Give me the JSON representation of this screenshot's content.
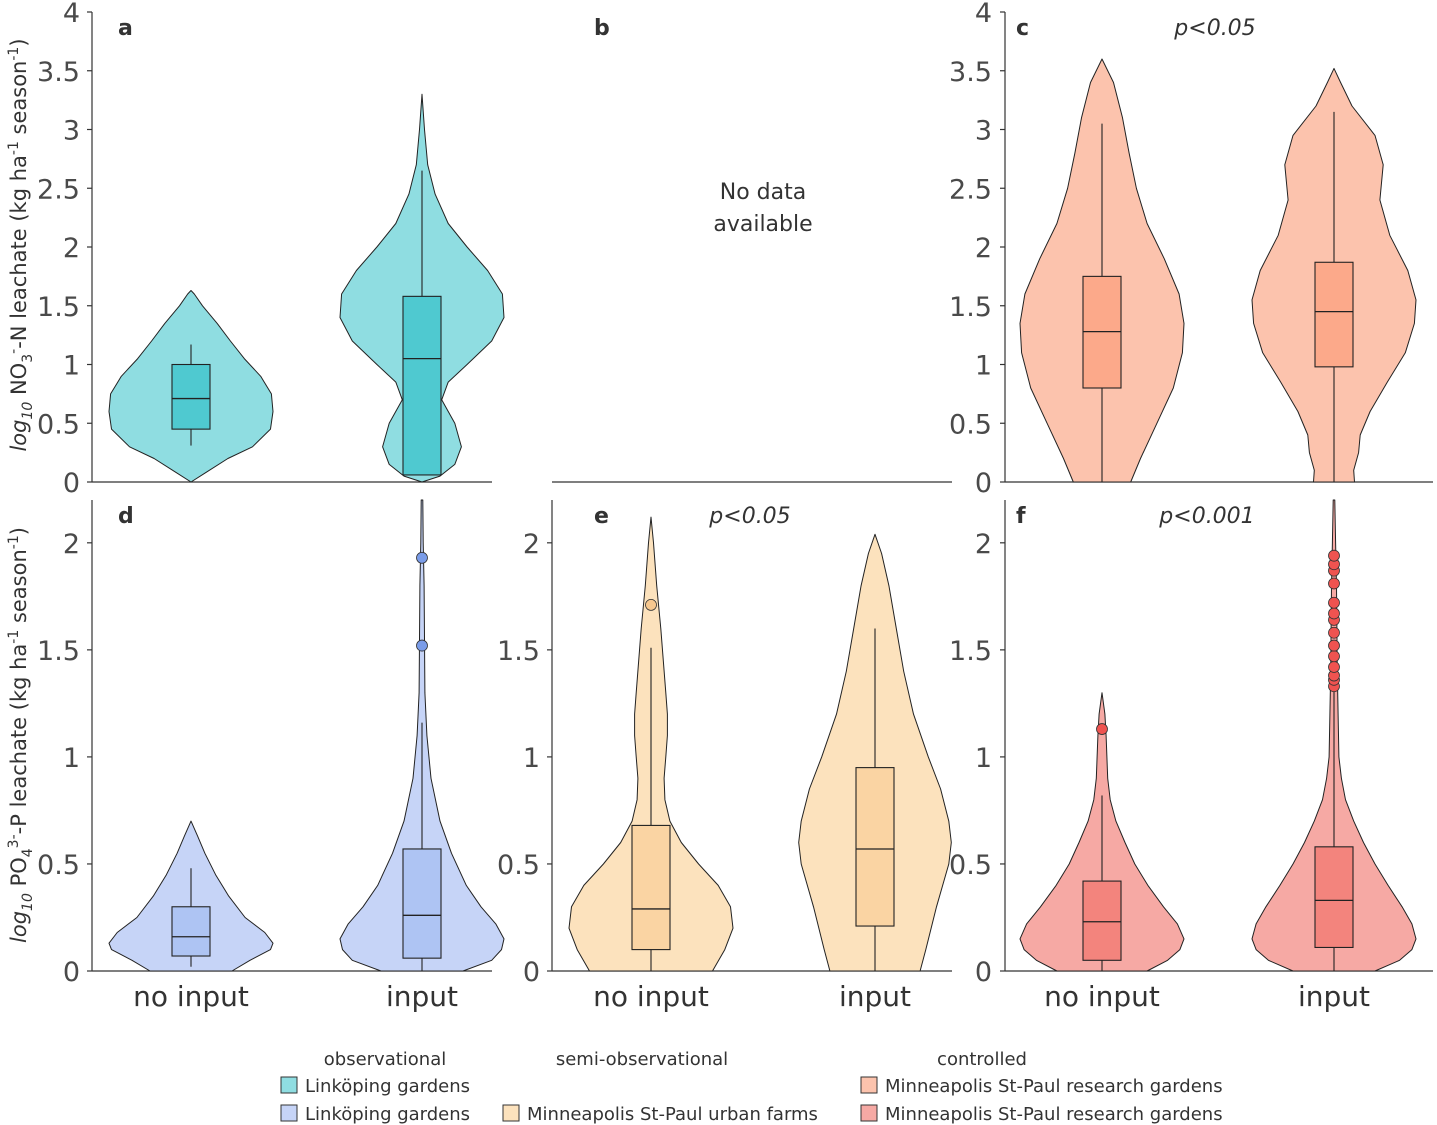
{
  "chart_data": [
    {
      "panel": "a",
      "type": "violin",
      "ylim": [
        0,
        4
      ],
      "yticks": [
        "0",
        "0.5",
        "1",
        "1.5",
        "2",
        "2.5",
        "3",
        "3.5",
        "4"
      ],
      "categories": [
        "no input",
        "input"
      ],
      "p_value": "",
      "violin_color": "#8fdde1",
      "box_color": "#4fc9d0",
      "series": [
        {
          "category": "no input",
          "violin": [
            [
              0.0,
              0
            ],
            [
              0.08,
              0.18
            ],
            [
              0.2,
              0.45
            ],
            [
              0.3,
              0.75
            ],
            [
              0.45,
              0.97
            ],
            [
              0.6,
              1.0
            ],
            [
              0.75,
              0.98
            ],
            [
              0.9,
              0.85
            ],
            [
              1.05,
              0.65
            ],
            [
              1.2,
              0.48
            ],
            [
              1.35,
              0.32
            ],
            [
              1.5,
              0.14
            ],
            [
              1.6,
              0.04
            ],
            [
              1.63,
              0
            ]
          ],
          "box": {
            "whisker_low": 0.31,
            "q1": 0.45,
            "median": 0.71,
            "q3": 1.0,
            "whisker_high": 1.17
          },
          "outliers": []
        },
        {
          "category": "input",
          "violin": [
            [
              0.0,
              0
            ],
            [
              0.05,
              0.22
            ],
            [
              0.15,
              0.4
            ],
            [
              0.3,
              0.48
            ],
            [
              0.5,
              0.4
            ],
            [
              0.7,
              0.24
            ],
            [
              0.85,
              0.32
            ],
            [
              1.0,
              0.55
            ],
            [
              1.2,
              0.85
            ],
            [
              1.4,
              1.0
            ],
            [
              1.6,
              0.98
            ],
            [
              1.8,
              0.8
            ],
            [
              2.0,
              0.55
            ],
            [
              2.2,
              0.32
            ],
            [
              2.45,
              0.16
            ],
            [
              2.7,
              0.07
            ],
            [
              3.0,
              0.03
            ],
            [
              3.3,
              0
            ]
          ],
          "box": {
            "whisker_low": 0.06,
            "q1": 0.06,
            "median": 1.05,
            "q3": 1.58,
            "whisker_high": 2.65
          },
          "outliers": []
        }
      ]
    },
    {
      "panel": "b",
      "type": "violin",
      "ylim": [
        0,
        4
      ],
      "yticks": [],
      "categories": [
        "no input",
        "input"
      ],
      "p_value": "",
      "no_data_lines": [
        "No data",
        "available"
      ],
      "series": []
    },
    {
      "panel": "c",
      "type": "violin",
      "ylim": [
        0,
        4
      ],
      "yticks": [
        "0",
        "0.5",
        "1",
        "1.5",
        "2",
        "2.5",
        "3",
        "3.5",
        "4"
      ],
      "categories": [
        "no input",
        "input"
      ],
      "p_value": "p<0.05",
      "violin_color": "#fcc3ad",
      "box_color": "#fca98a",
      "series": [
        {
          "category": "no input",
          "violin": [
            [
              0.0,
              0.35
            ],
            [
              0.2,
              0.47
            ],
            [
              0.5,
              0.67
            ],
            [
              0.8,
              0.87
            ],
            [
              1.1,
              0.98
            ],
            [
              1.35,
              1.0
            ],
            [
              1.6,
              0.94
            ],
            [
              1.9,
              0.76
            ],
            [
              2.2,
              0.55
            ],
            [
              2.5,
              0.42
            ],
            [
              2.8,
              0.33
            ],
            [
              3.1,
              0.25
            ],
            [
              3.4,
              0.14
            ],
            [
              3.6,
              0
            ]
          ],
          "box": {
            "whisker_low": 0.0,
            "q1": 0.8,
            "median": 1.28,
            "q3": 1.75,
            "whisker_high": 3.05
          },
          "outliers": []
        },
        {
          "category": "input",
          "violin": [
            [
              0.0,
              0.25
            ],
            [
              0.1,
              0.24
            ],
            [
              0.25,
              0.3
            ],
            [
              0.4,
              0.32
            ],
            [
              0.6,
              0.44
            ],
            [
              0.85,
              0.65
            ],
            [
              1.1,
              0.87
            ],
            [
              1.35,
              0.98
            ],
            [
              1.55,
              1.0
            ],
            [
              1.8,
              0.9
            ],
            [
              2.1,
              0.68
            ],
            [
              2.4,
              0.56
            ],
            [
              2.7,
              0.6
            ],
            [
              2.95,
              0.5
            ],
            [
              3.2,
              0.22
            ],
            [
              3.4,
              0.08
            ],
            [
              3.52,
              0
            ]
          ],
          "box": {
            "whisker_low": 0.0,
            "q1": 0.98,
            "median": 1.45,
            "q3": 1.87,
            "whisker_high": 3.15
          },
          "outliers": []
        }
      ]
    },
    {
      "panel": "d",
      "type": "violin",
      "ylim": [
        0,
        2.2
      ],
      "yticks": [
        "0",
        "0.5",
        "1",
        "1.5",
        "2"
      ],
      "categories": [
        "no input",
        "input"
      ],
      "p_value": "",
      "violin_color": "#c6d4f7",
      "box_color": "#aec4f3",
      "outlier_color": "#7a9ce8",
      "series": [
        {
          "category": "no input",
          "violin": [
            [
              0.0,
              0.5
            ],
            [
              0.05,
              0.72
            ],
            [
              0.1,
              0.97
            ],
            [
              0.13,
              1.0
            ],
            [
              0.18,
              0.9
            ],
            [
              0.25,
              0.66
            ],
            [
              0.35,
              0.46
            ],
            [
              0.45,
              0.3
            ],
            [
              0.55,
              0.17
            ],
            [
              0.63,
              0.08
            ],
            [
              0.7,
              0
            ]
          ],
          "box": {
            "whisker_low": 0.02,
            "q1": 0.07,
            "median": 0.16,
            "q3": 0.3,
            "whisker_high": 0.48
          },
          "outliers": []
        },
        {
          "category": "input",
          "violin": [
            [
              0.0,
              0.5
            ],
            [
              0.05,
              0.85
            ],
            [
              0.1,
              0.97
            ],
            [
              0.15,
              1.0
            ],
            [
              0.22,
              0.9
            ],
            [
              0.3,
              0.72
            ],
            [
              0.4,
              0.54
            ],
            [
              0.55,
              0.36
            ],
            [
              0.7,
              0.22
            ],
            [
              0.9,
              0.11
            ],
            [
              1.1,
              0.06
            ],
            [
              1.3,
              0.035
            ],
            [
              1.55,
              0.03
            ],
            [
              1.8,
              0.025
            ],
            [
              2.0,
              0.015
            ],
            [
              2.2,
              0.01
            ]
          ],
          "box": {
            "whisker_low": 0.0,
            "q1": 0.06,
            "median": 0.26,
            "q3": 0.57,
            "whisker_high": 1.16
          },
          "outliers": [
            1.52,
            1.93
          ]
        }
      ]
    },
    {
      "panel": "e",
      "type": "violin",
      "ylim": [
        0,
        2.2
      ],
      "yticks": [
        "0",
        "0.5",
        "1",
        "1.5",
        "2"
      ],
      "categories": [
        "no input",
        "input"
      ],
      "p_value": "p<0.05",
      "violin_color": "#fce2bd",
      "box_color": "#fad4a3",
      "outlier_color": "#f7c88f",
      "series": [
        {
          "category": "no input",
          "violin": [
            [
              0.0,
              0.75
            ],
            [
              0.1,
              0.9
            ],
            [
              0.2,
              1.0
            ],
            [
              0.3,
              0.97
            ],
            [
              0.4,
              0.82
            ],
            [
              0.5,
              0.58
            ],
            [
              0.6,
              0.37
            ],
            [
              0.7,
              0.23
            ],
            [
              0.8,
              0.17
            ],
            [
              0.9,
              0.16
            ],
            [
              1.0,
              0.18
            ],
            [
              1.1,
              0.2
            ],
            [
              1.2,
              0.2
            ],
            [
              1.3,
              0.18
            ],
            [
              1.45,
              0.15
            ],
            [
              1.6,
              0.12
            ],
            [
              1.8,
              0.07
            ],
            [
              2.0,
              0.03
            ],
            [
              2.12,
              0
            ]
          ],
          "box": {
            "whisker_low": 0.0,
            "q1": 0.1,
            "median": 0.29,
            "q3": 0.68,
            "whisker_high": 1.51
          },
          "outliers": [
            1.71
          ]
        },
        {
          "category": "input",
          "violin": [
            [
              0.0,
              0.55
            ],
            [
              0.1,
              0.62
            ],
            [
              0.3,
              0.75
            ],
            [
              0.5,
              0.9
            ],
            [
              0.6,
              0.93
            ],
            [
              0.7,
              0.9
            ],
            [
              0.85,
              0.8
            ],
            [
              1.0,
              0.65
            ],
            [
              1.2,
              0.47
            ],
            [
              1.4,
              0.35
            ],
            [
              1.6,
              0.26
            ],
            [
              1.8,
              0.17
            ],
            [
              1.95,
              0.08
            ],
            [
              2.04,
              0
            ]
          ],
          "box": {
            "whisker_low": 0.0,
            "q1": 0.21,
            "median": 0.57,
            "q3": 0.95,
            "whisker_high": 1.6
          },
          "outliers": []
        }
      ]
    },
    {
      "panel": "f",
      "type": "violin",
      "ylim": [
        0,
        2.2
      ],
      "yticks": [
        "0",
        "0.5",
        "1",
        "1.5",
        "2"
      ],
      "categories": [
        "no input",
        "input"
      ],
      "p_value": "p<0.001",
      "violin_color": "#f6a9a4",
      "box_color": "#f3847d",
      "outlier_color": "#ef5350",
      "series": [
        {
          "category": "no input",
          "violin": [
            [
              0.0,
              0.55
            ],
            [
              0.05,
              0.8
            ],
            [
              0.1,
              0.95
            ],
            [
              0.15,
              1.0
            ],
            [
              0.22,
              0.92
            ],
            [
              0.3,
              0.75
            ],
            [
              0.4,
              0.56
            ],
            [
              0.5,
              0.4
            ],
            [
              0.6,
              0.28
            ],
            [
              0.7,
              0.17
            ],
            [
              0.8,
              0.1
            ],
            [
              0.9,
              0.07
            ],
            [
              1.0,
              0.06
            ],
            [
              1.1,
              0.05
            ],
            [
              1.2,
              0.035
            ],
            [
              1.3,
              0
            ]
          ],
          "box": {
            "whisker_low": 0.0,
            "q1": 0.05,
            "median": 0.23,
            "q3": 0.42,
            "whisker_high": 0.82
          },
          "outliers": [
            1.13
          ]
        },
        {
          "category": "input",
          "violin": [
            [
              0.0,
              0.5
            ],
            [
              0.05,
              0.8
            ],
            [
              0.1,
              0.95
            ],
            [
              0.15,
              1.0
            ],
            [
              0.22,
              0.95
            ],
            [
              0.3,
              0.83
            ],
            [
              0.4,
              0.66
            ],
            [
              0.5,
              0.5
            ],
            [
              0.6,
              0.36
            ],
            [
              0.7,
              0.24
            ],
            [
              0.8,
              0.14
            ],
            [
              0.9,
              0.09
            ],
            [
              1.0,
              0.06
            ],
            [
              1.2,
              0.05
            ],
            [
              1.4,
              0.04
            ],
            [
              1.6,
              0.035
            ],
            [
              1.8,
              0.03
            ],
            [
              2.0,
              0.02
            ],
            [
              2.2,
              0.01
            ]
          ],
          "box": {
            "whisker_low": 0.0,
            "q1": 0.11,
            "median": 0.33,
            "q3": 0.58,
            "whisker_high": 1.32
          },
          "outliers": [
            1.33,
            1.36,
            1.38,
            1.42,
            1.47,
            1.52,
            1.58,
            1.64,
            1.67,
            1.72,
            1.81,
            1.87,
            1.9,
            1.94
          ]
        }
      ]
    }
  ],
  "y_axis_labels": {
    "top": "log10 NO3--N leachate (kg ha-1 season-1)",
    "bottom": "log10 PO43--P leachate (kg ha-1 season-1)"
  },
  "legend": {
    "groups": [
      {
        "title": "observational",
        "items": [
          {
            "label": "Linköping gardens",
            "color": "#8fdde1"
          },
          {
            "label": "Linköping gardens",
            "color": "#c6d4f7"
          }
        ]
      },
      {
        "title": "semi-observational",
        "items": [
          {
            "label": "Minneapolis St-Paul urban farms",
            "color": "#fce2bd"
          }
        ]
      },
      {
        "title": "controlled",
        "items": [
          {
            "label": "Minneapolis St-Paul research gardens",
            "color": "#fcc3ad"
          },
          {
            "label": "Minneapolis St-Paul research gardens",
            "color": "#f6a9a4"
          }
        ]
      }
    ]
  }
}
